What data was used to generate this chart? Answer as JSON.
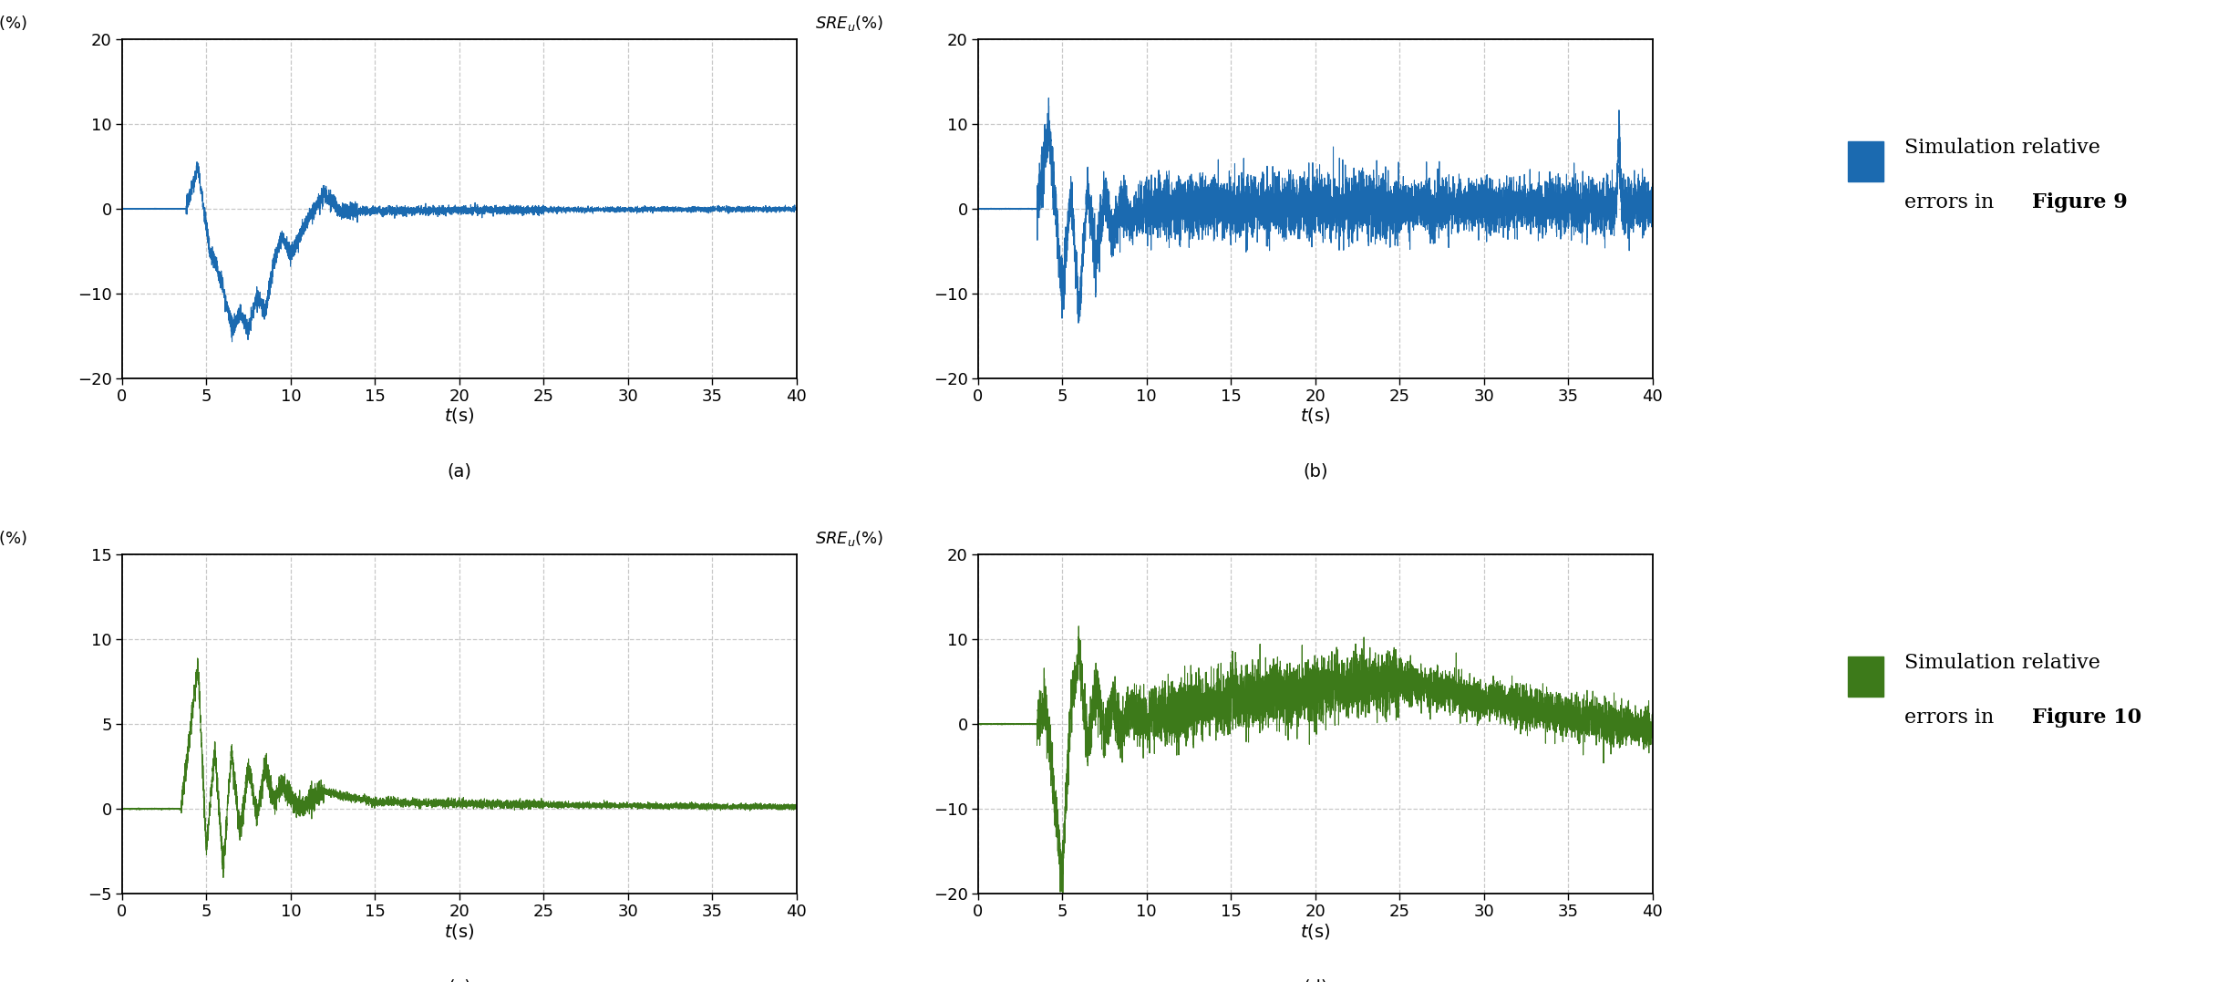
{
  "blue_color": "#1b6ab0",
  "green_color": "#3d7a1a",
  "bg_color": "#ffffff",
  "grid_color": "#c8c8c8",
  "figsize": [
    24.33,
    10.77
  ],
  "dpi": 100,
  "ylim_a": [
    -20,
    20
  ],
  "ylim_b": [
    -20,
    20
  ],
  "ylim_c": [
    -5,
    15
  ],
  "ylim_d": [
    -20,
    20
  ],
  "yticks_a": [
    -20,
    -10,
    0,
    10,
    20
  ],
  "yticks_b": [
    -20,
    -10,
    0,
    10,
    20
  ],
  "yticks_c": [
    -5,
    0,
    5,
    10,
    15
  ],
  "yticks_d": [
    -20,
    -10,
    0,
    10,
    20
  ],
  "xlim": [
    0,
    40
  ],
  "xticks": [
    0,
    5,
    10,
    15,
    20,
    25,
    30,
    35,
    40
  ]
}
